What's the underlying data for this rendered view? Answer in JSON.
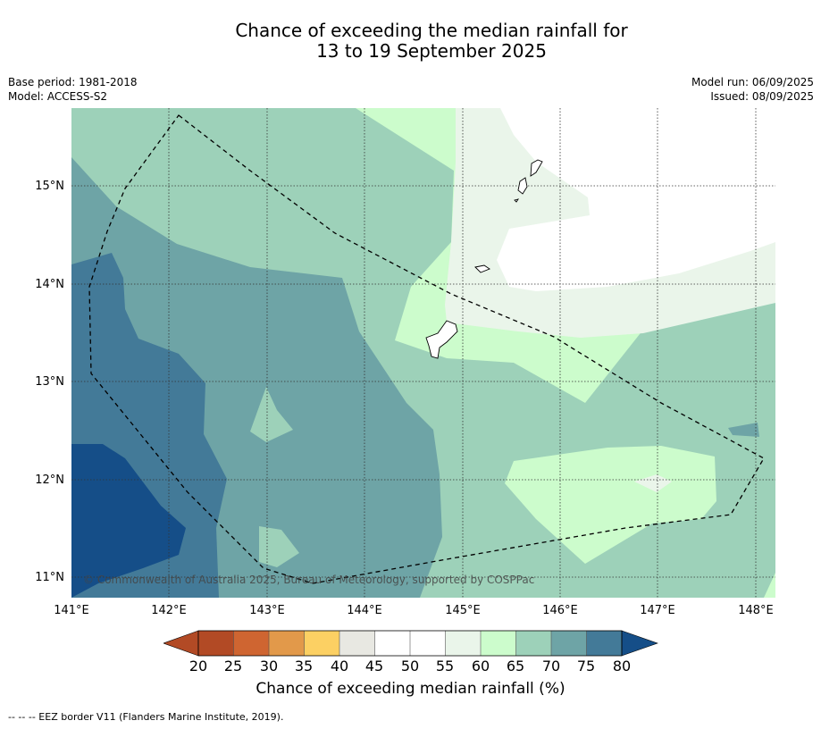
{
  "title": {
    "line1": "Chance of exceeding the median rainfall for",
    "line2": "13 to 19 September 2025"
  },
  "meta": {
    "base_period": "Base period: 1981-2018",
    "model": "Model: ACCESS-S2",
    "model_run": "Model run: 06/09/2025",
    "issued": "Issued: 08/09/2025"
  },
  "map": {
    "lat_labels": [
      "15°N",
      "14°N",
      "13°N",
      "12°N",
      "11°N"
    ],
    "lon_labels": [
      "141°E",
      "142°E",
      "143°E",
      "144°E",
      "145°E",
      "146°E",
      "147°E",
      "148°E"
    ],
    "copyright": "© Commonwealth of Australia 2025, Bureau of Meteorology, supported by COSPPac",
    "colors": {
      "c20_25": "#b24a25",
      "c25_30": "#cf6531",
      "c30_35": "#e2994a",
      "c35_40": "#fcd063",
      "c40_45": "#e8e8e2",
      "c45_55": "#ffffff",
      "c55_60": "#eaf5ea",
      "c60_65": "#ccfccc",
      "c65_70": "#9dd1b9",
      "c70_75": "#6ea4a6",
      "c75_80": "#437a98",
      "c80": "#154e88"
    }
  },
  "colorbar": {
    "ticks": [
      "20",
      "25",
      "30",
      "35",
      "40",
      "45",
      "50",
      "55",
      "60",
      "65",
      "70",
      "75",
      "80"
    ],
    "label": "Chance of exceeding median rainfall (%)"
  },
  "footer": "-- -- -- EEZ border V11 (Flanders Marine Institute, 2019)."
}
